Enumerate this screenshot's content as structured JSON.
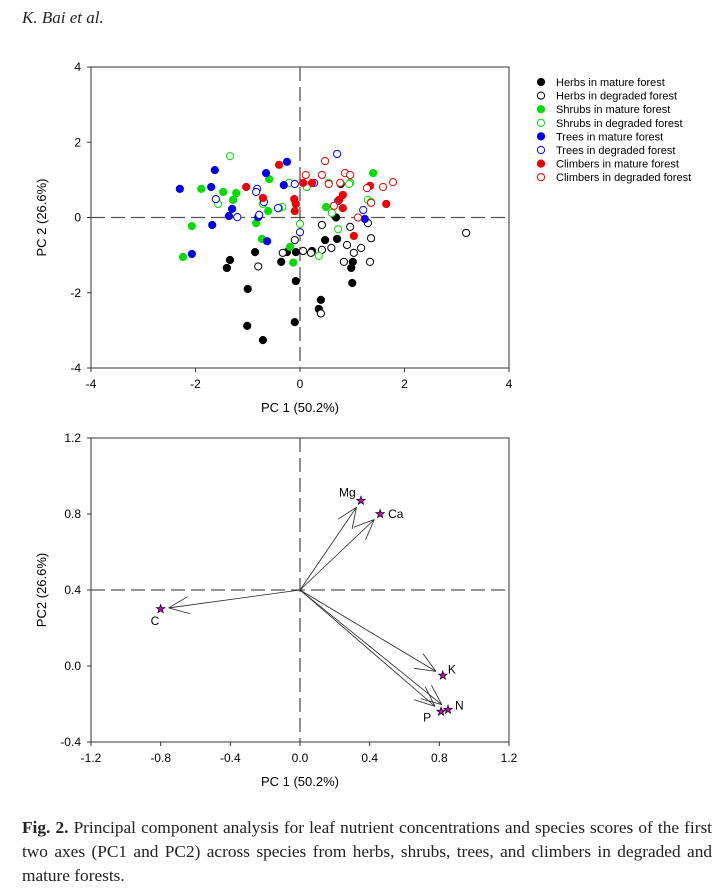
{
  "header": {
    "running_head": "K. Bai et al."
  },
  "caption": {
    "label": "Fig. 2.",
    "text": "Principal component analysis for leaf nutrient concentrations and species scores of the first two axes (PC1 and PC2) across species from herbs, shrubs, trees, and climbers in degraded and mature forests."
  },
  "chart_data": [
    {
      "type": "scatter",
      "xlabel": "PC 1 (50.2%)",
      "ylabel": "PC 2 (26.6%)",
      "xlim": [
        -4,
        4
      ],
      "ylim": [
        -4,
        4
      ],
      "xticks": [
        "-4",
        "-2",
        "0",
        "2",
        "4"
      ],
      "yticks": [
        "4",
        "2",
        "0",
        "-2",
        "-4"
      ],
      "reference_lines": {
        "x": 0,
        "y": 0,
        "style": "dashed"
      },
      "legend_position": "right",
      "series": [
        {
          "name": "Herbs in mature forest",
          "color": "#000000",
          "filled": true,
          "points": [
            [
              -0.86,
              -0.92
            ],
            [
              -0.08,
              -0.92
            ],
            [
              -1.34,
              -1.13
            ],
            [
              -1.4,
              -1.34
            ],
            [
              -0.36,
              -1.18
            ],
            [
              0.48,
              -0.6
            ],
            [
              0.69,
              0.0
            ],
            [
              -1.0,
              -1.9
            ],
            [
              -1.01,
              -2.88
            ],
            [
              -0.71,
              -3.26
            ],
            [
              -0.1,
              -2.78
            ],
            [
              -0.08,
              -1.69
            ],
            [
              0.4,
              -2.19
            ],
            [
              0.36,
              -2.43
            ],
            [
              1.0,
              -1.74
            ],
            [
              0.98,
              -1.34
            ],
            [
              1.01,
              -1.18
            ],
            [
              0.23,
              -0.89
            ],
            [
              0.78,
              0.89
            ],
            [
              0.71,
              -0.57
            ],
            [
              -0.25,
              -0.92
            ]
          ]
        },
        {
          "name": "Herbs in degraded forest",
          "color": "#000000",
          "filled": false,
          "points": [
            [
              -0.8,
              -1.3
            ],
            [
              -0.1,
              -0.6
            ],
            [
              0.42,
              -0.2
            ],
            [
              0.9,
              -0.73
            ],
            [
              1.03,
              -0.94
            ],
            [
              1.17,
              -0.81
            ],
            [
              1.34,
              -1.18
            ],
            [
              1.36,
              -0.55
            ],
            [
              0.4,
              -2.55
            ],
            [
              0.42,
              -0.86
            ],
            [
              -0.33,
              -0.94
            ],
            [
              3.18,
              -0.41
            ],
            [
              0.06,
              -0.89
            ],
            [
              0.96,
              -0.25
            ],
            [
              0.21,
              -0.94
            ],
            [
              0.6,
              -0.81
            ],
            [
              1.3,
              -0.15
            ],
            [
              0.84,
              -1.18
            ]
          ]
        },
        {
          "name": "Shrubs in mature forest",
          "color": "#00dd00",
          "filled": true,
          "points": [
            [
              -1.89,
              0.76
            ],
            [
              -1.47,
              0.68
            ],
            [
              -1.22,
              0.65
            ],
            [
              -1.28,
              0.47
            ],
            [
              -0.59,
              1.02
            ],
            [
              -0.61,
              0.17
            ],
            [
              -2.07,
              -0.23
            ],
            [
              -2.24,
              -1.05
            ],
            [
              -0.84,
              -0.15
            ],
            [
              -0.73,
              -0.57
            ],
            [
              -0.19,
              -0.78
            ],
            [
              -0.13,
              -1.2
            ],
            [
              1.4,
              1.18
            ],
            [
              0.5,
              0.28
            ]
          ]
        },
        {
          "name": "Shrubs in degraded forest",
          "color": "#00dd00",
          "filled": false,
          "points": [
            [
              -1.34,
              1.63
            ],
            [
              -1.57,
              0.36
            ],
            [
              0.0,
              -0.17
            ],
            [
              -0.71,
              0.36
            ],
            [
              -0.34,
              0.28
            ],
            [
              -0.21,
              0.92
            ],
            [
              0.13,
              0.81
            ],
            [
              0.55,
              0.92
            ],
            [
              0.96,
              0.92
            ],
            [
              0.73,
              -0.31
            ],
            [
              0.36,
              -1.02
            ],
            [
              0.94,
              0.89
            ],
            [
              1.3,
              0.47
            ],
            [
              1.36,
              0.41
            ],
            [
              0.61,
              0.12
            ],
            [
              -0.4,
              0.25
            ]
          ]
        },
        {
          "name": "Trees in mature forest",
          "color": "#0000ee",
          "filled": true,
          "points": [
            [
              -2.3,
              0.76
            ],
            [
              -1.63,
              1.26
            ],
            [
              -1.7,
              0.81
            ],
            [
              -1.3,
              0.23
            ],
            [
              -1.36,
              0.04
            ],
            [
              -1.68,
              -0.2
            ],
            [
              -2.07,
              -0.97
            ],
            [
              -0.65,
              1.18
            ],
            [
              -0.25,
              1.48
            ],
            [
              -0.31,
              0.86
            ],
            [
              -0.8,
              0.01
            ],
            [
              -0.63,
              -0.63
            ],
            [
              1.24,
              -0.04
            ]
          ]
        },
        {
          "name": "Trees in degraded forest",
          "color": "#0000ee",
          "filled": false,
          "points": [
            [
              -1.61,
              0.49
            ],
            [
              -0.82,
              0.76
            ],
            [
              -0.84,
              0.68
            ],
            [
              -0.69,
              0.41
            ],
            [
              -1.2,
              0.01
            ],
            [
              -0.78,
              0.07
            ],
            [
              -0.42,
              0.25
            ],
            [
              -0.1,
              0.89
            ],
            [
              0.0,
              -0.39
            ],
            [
              0.71,
              1.69
            ],
            [
              0.27,
              0.92
            ],
            [
              0.73,
              0.44
            ],
            [
              1.21,
              0.2
            ]
          ]
        },
        {
          "name": "Climbers in mature forest",
          "color": "#ee0000",
          "filled": true,
          "points": [
            [
              -1.03,
              0.81
            ],
            [
              -0.4,
              1.4
            ],
            [
              -0.71,
              0.52
            ],
            [
              -0.11,
              0.49
            ],
            [
              -0.08,
              0.36
            ],
            [
              -0.1,
              0.17
            ],
            [
              0.06,
              0.92
            ],
            [
              0.82,
              0.6
            ],
            [
              0.75,
              0.47
            ],
            [
              0.82,
              0.25
            ],
            [
              1.03,
              -0.49
            ],
            [
              1.34,
              0.84
            ],
            [
              1.65,
              0.36
            ],
            [
              0.23,
              0.92
            ]
          ]
        },
        {
          "name": "Climbers in degraded forest",
          "color": "#ee0000",
          "filled": false,
          "points": [
            [
              0.48,
              1.5
            ],
            [
              0.11,
              1.13
            ],
            [
              0.42,
              1.13
            ],
            [
              0.86,
              1.18
            ],
            [
              0.96,
              1.13
            ],
            [
              0.55,
              0.89
            ],
            [
              0.77,
              0.92
            ],
            [
              1.28,
              0.78
            ],
            [
              1.59,
              0.81
            ],
            [
              1.78,
              0.94
            ],
            [
              0.65,
              0.31
            ],
            [
              1.11,
              0.0
            ],
            [
              1.36,
              0.39
            ]
          ]
        }
      ]
    },
    {
      "type": "biplot",
      "xlabel": "PC 1 (50.2%)",
      "ylabel": "PC2 (26.6%)",
      "xlim": [
        -1.2,
        1.2
      ],
      "ylim": [
        -0.4,
        1.2
      ],
      "xticks": [
        "-1.2",
        "-0.8",
        "-0.4",
        "0.0",
        "0.4",
        "0.8",
        "1.2"
      ],
      "yticks": [
        "1.2",
        "0.8",
        "0.4",
        "0.0",
        "-0.4"
      ],
      "reference_lines": {
        "x": 0,
        "y": 0.4,
        "style": "dashed"
      },
      "origin": [
        0,
        0.4
      ],
      "marker_color": "#cc00cc",
      "vectors": [
        {
          "label": "Mg",
          "x": 0.35,
          "y": 0.87
        },
        {
          "label": "Ca",
          "x": 0.46,
          "y": 0.8
        },
        {
          "label": "C",
          "x": -0.8,
          "y": 0.3
        },
        {
          "label": "K",
          "x": 0.82,
          "y": -0.05
        },
        {
          "label": "N",
          "x": 0.85,
          "y": -0.23
        },
        {
          "label": "P",
          "x": 0.81,
          "y": -0.24
        }
      ]
    }
  ]
}
